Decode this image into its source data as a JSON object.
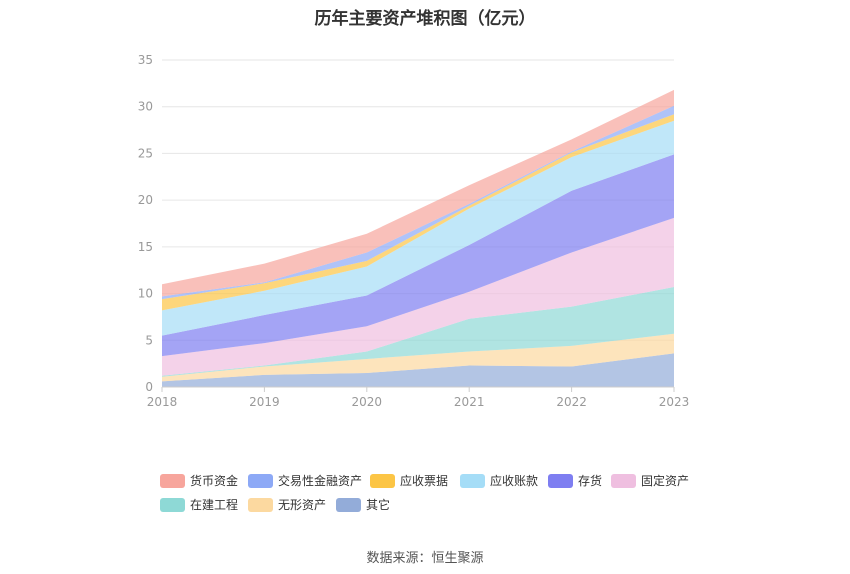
{
  "title": "历年主要资产堆积图（亿元）",
  "source": "数据来源：恒生聚源",
  "chart_data": {
    "type": "area",
    "stacked": true,
    "title": "历年主要资产堆积图（亿元）",
    "xlabel": "",
    "ylabel": "",
    "x": [
      "2018",
      "2019",
      "2020",
      "2021",
      "2022",
      "2023"
    ],
    "ylim": [
      0,
      35
    ],
    "yticks": [
      0,
      5,
      10,
      15,
      20,
      25,
      30,
      35
    ],
    "grid": true,
    "legend_position": "bottom",
    "series": [
      {
        "name": "其它",
        "color": "#93acd9",
        "values": [
          0.6,
          1.3,
          1.5,
          2.3,
          2.2,
          3.6
        ]
      },
      {
        "name": "无形资产",
        "color": "#fcd9a0",
        "values": [
          0.5,
          0.9,
          1.5,
          1.5,
          2.2,
          2.1
        ]
      },
      {
        "name": "在建工程",
        "color": "#8ed9d6",
        "values": [
          0.1,
          0.1,
          0.8,
          3.5,
          4.2,
          5.0
        ]
      },
      {
        "name": "固定资产",
        "color": "#efbfe0",
        "values": [
          2.1,
          2.4,
          2.7,
          2.9,
          5.8,
          7.4
        ]
      },
      {
        "name": "存货",
        "color": "#7e7ef1",
        "values": [
          2.2,
          3.0,
          3.3,
          5.0,
          6.6,
          6.8
        ]
      },
      {
        "name": "应收账款",
        "color": "#a5ddf7",
        "values": [
          2.7,
          2.6,
          3.1,
          3.9,
          3.6,
          3.6
        ]
      },
      {
        "name": "应收票据",
        "color": "#fcc545",
        "values": [
          1.2,
          0.8,
          0.6,
          0.3,
          0.5,
          0.7
        ]
      },
      {
        "name": "交易性金融资产",
        "color": "#8da9f6",
        "values": [
          0.3,
          0.1,
          0.9,
          0.2,
          0.1,
          0.9
        ]
      },
      {
        "name": "货币资金",
        "color": "#f7a59c",
        "values": [
          1.3,
          2.0,
          2.0,
          2.0,
          1.3,
          1.7
        ]
      }
    ]
  },
  "legend": [
    {
      "label": "货币资金",
      "color": "#f7a59c"
    },
    {
      "label": "交易性金融资产",
      "color": "#8da9f6"
    },
    {
      "label": "应收票据",
      "color": "#fcc545"
    },
    {
      "label": "应收账款",
      "color": "#a5ddf7"
    },
    {
      "label": "存货",
      "color": "#7e7ef1"
    },
    {
      "label": "固定资产",
      "color": "#efbfe0"
    },
    {
      "label": "在建工程",
      "color": "#8ed9d6"
    },
    {
      "label": "无形资产",
      "color": "#fcd9a0"
    },
    {
      "label": "其它",
      "color": "#93acd9"
    }
  ]
}
